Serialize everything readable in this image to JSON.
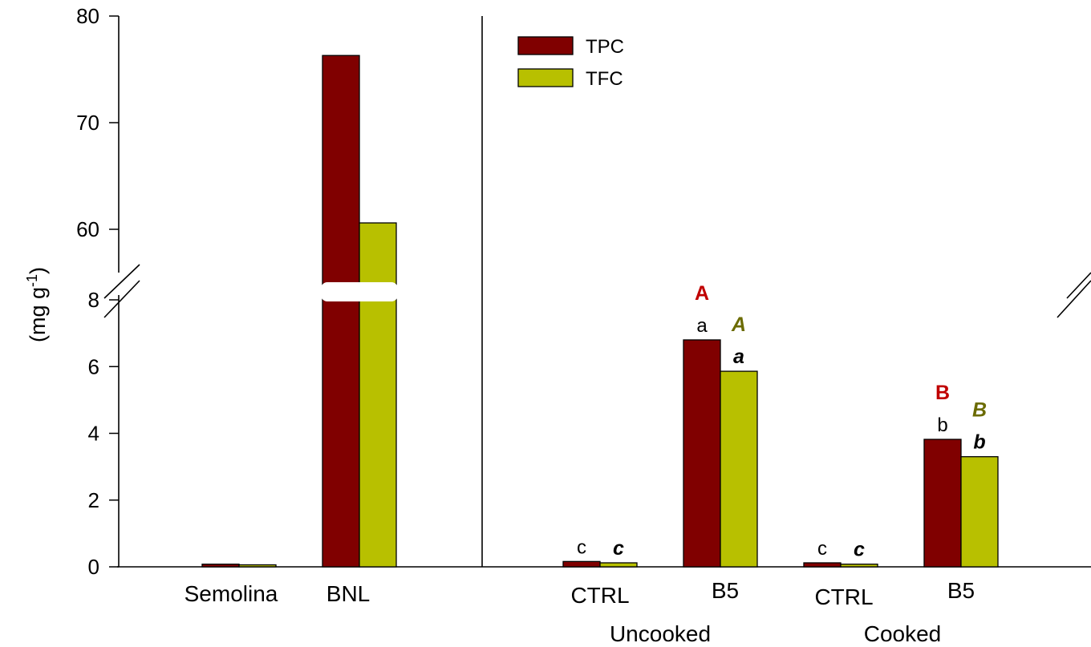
{
  "chart_data": {
    "type": "bar",
    "ylabel": "(mg g",
    "ylabel_superscript": "-1",
    "ylabel_suffix": ")",
    "axis_break": {
      "lower_range": [
        0,
        8
      ],
      "upper_range": [
        55,
        80
      ]
    },
    "lower_ticks": [
      "0",
      "2",
      "4",
      "6",
      "8"
    ],
    "upper_ticks": [
      "60",
      "70",
      "80"
    ],
    "categories": [
      "Semolina",
      "BNL",
      "CTRL",
      "B5",
      "CTRL",
      "B5"
    ],
    "group_labels": [
      "Uncooked",
      "Cooked"
    ],
    "series": [
      {
        "name": "TPC",
        "color": "#800000",
        "values": [
          0.08,
          76.3,
          0.16,
          6.8,
          0.12,
          3.82
        ]
      },
      {
        "name": "TFC",
        "color": "#b8c000",
        "values": [
          0.06,
          60.6,
          0.12,
          5.86,
          0.08,
          3.3
        ]
      }
    ],
    "significance": [
      {
        "category_index": 2,
        "series": 0,
        "lower": "c",
        "upper": ""
      },
      {
        "category_index": 2,
        "series": 1,
        "lower": "c",
        "upper": ""
      },
      {
        "category_index": 3,
        "series": 0,
        "lower": "a",
        "upper": "A"
      },
      {
        "category_index": 3,
        "series": 1,
        "lower": "a",
        "upper": "A"
      },
      {
        "category_index": 4,
        "series": 0,
        "lower": "c",
        "upper": ""
      },
      {
        "category_index": 4,
        "series": 1,
        "lower": "c",
        "upper": ""
      },
      {
        "category_index": 5,
        "series": 0,
        "lower": "b",
        "upper": "B"
      },
      {
        "category_index": 5,
        "series": 1,
        "lower": "b",
        "upper": "B"
      }
    ],
    "sig_colors": {
      "tpc_upper": "#c00000",
      "tfc_upper": "#6b6b00",
      "lower": "#000000"
    },
    "legend_position": "top-center"
  }
}
